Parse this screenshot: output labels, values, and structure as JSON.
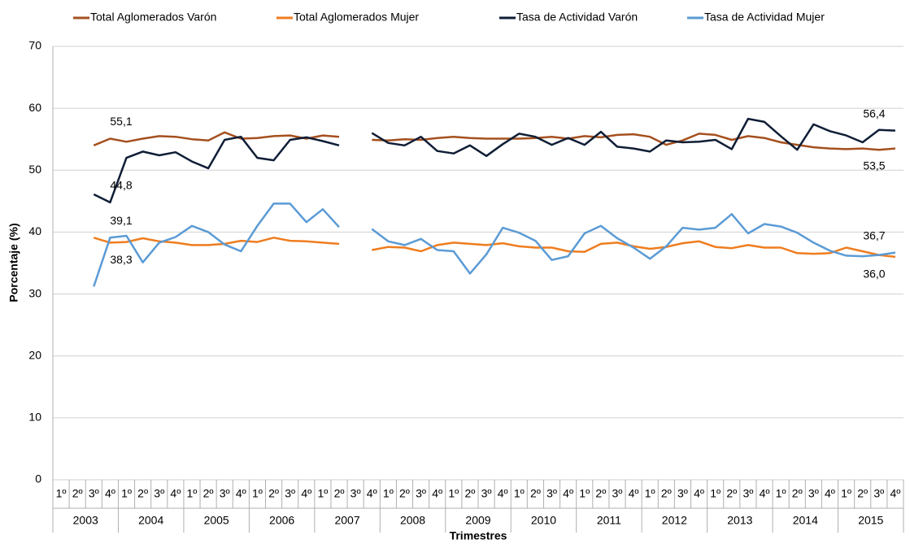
{
  "chart_data": {
    "type": "line",
    "ylabel": "Porcentaje (%)",
    "xlabel": "Trimestres",
    "categories": [
      "1º",
      "2º",
      "3º",
      "4º",
      "1º",
      "2º",
      "3º",
      "4º",
      "1º",
      "2º",
      "3º",
      "4º",
      "1º",
      "2º",
      "3º",
      "4º",
      "1º",
      "2º",
      "3º",
      "4º",
      "1º",
      "2º",
      "3º",
      "4º",
      "1º",
      "2º",
      "3º",
      "4º",
      "1º",
      "2º",
      "3º",
      "4º",
      "1º",
      "2º",
      "3º",
      "4º",
      "1º",
      "2º",
      "3º",
      "4º",
      "1º",
      "2º",
      "3º",
      "4º",
      "1º",
      "2º",
      "3º",
      "4º",
      "1º",
      "2º",
      "3º",
      "4º"
    ],
    "years": [
      2003,
      2004,
      2005,
      2006,
      2007,
      2008,
      2009,
      2010,
      2011,
      2012,
      2013,
      2014,
      2015
    ],
    "ylim": [
      0,
      70
    ],
    "yticks": [
      0,
      10,
      20,
      30,
      40,
      50,
      60,
      70
    ],
    "grid": true,
    "legend": "top",
    "series": [
      {
        "name": "Total Aglomerados Varón",
        "color": "#a5501f",
        "values": [
          null,
          null,
          54.0,
          55.1,
          54.6,
          55.1,
          55.5,
          55.4,
          55.0,
          54.8,
          56.1,
          55.1,
          55.2,
          55.5,
          55.6,
          55.1,
          55.6,
          55.4,
          null,
          54.9,
          54.8,
          55.0,
          54.9,
          55.2,
          55.4,
          55.2,
          55.1,
          55.1,
          55.1,
          55.2,
          55.4,
          55.1,
          55.5,
          55.3,
          55.7,
          55.8,
          55.4,
          54.1,
          54.8,
          55.9,
          55.7,
          54.9,
          55.5,
          55.2,
          54.5,
          54.1,
          53.7,
          53.5,
          53.4,
          53.5,
          53.3,
          53.5
        ],
        "value_labels": [
          null,
          null,
          null,
          "55,1",
          null,
          null,
          null,
          null,
          null,
          null,
          null,
          null,
          null,
          null,
          null,
          null,
          null,
          null,
          null,
          null,
          null,
          null,
          null,
          null,
          null,
          null,
          null,
          null,
          null,
          null,
          null,
          null,
          null,
          null,
          null,
          null,
          null,
          null,
          null,
          null,
          null,
          null,
          null,
          null,
          null,
          null,
          null,
          null,
          null,
          null,
          null,
          "53,5"
        ]
      },
      {
        "name": "Total Aglomerados Mujer",
        "color": "#ee7d1f",
        "values": [
          null,
          null,
          39.1,
          38.3,
          38.4,
          39.0,
          38.5,
          38.3,
          37.9,
          37.9,
          38.1,
          38.6,
          38.4,
          39.1,
          38.6,
          38.5,
          38.3,
          38.1,
          null,
          37.1,
          37.6,
          37.5,
          36.9,
          37.9,
          38.3,
          38.1,
          37.9,
          38.2,
          37.7,
          37.5,
          37.5,
          36.9,
          36.8,
          38.1,
          38.3,
          37.7,
          37.3,
          37.6,
          38.2,
          38.5,
          37.6,
          37.4,
          37.9,
          37.5,
          37.5,
          36.6,
          36.5,
          36.6,
          37.5,
          36.9,
          36.3,
          36.0
        ],
        "value_labels": [
          null,
          null,
          null,
          "38,3",
          null,
          null,
          null,
          null,
          null,
          null,
          null,
          null,
          null,
          null,
          null,
          null,
          null,
          null,
          null,
          null,
          null,
          null,
          null,
          null,
          null,
          null,
          null,
          null,
          null,
          null,
          null,
          null,
          null,
          null,
          null,
          null,
          null,
          null,
          null,
          null,
          null,
          null,
          null,
          null,
          null,
          null,
          null,
          null,
          null,
          null,
          null,
          "36,0"
        ]
      },
      {
        "name": "Tasa de Actividad Varón",
        "color": "#0f1e36",
        "values": [
          null,
          null,
          46.1,
          44.8,
          52.0,
          53.0,
          52.4,
          52.9,
          51.4,
          50.3,
          54.9,
          55.4,
          52.0,
          51.6,
          54.9,
          55.3,
          54.7,
          54.0,
          null,
          56.0,
          54.4,
          54.0,
          55.4,
          53.1,
          52.7,
          54.0,
          52.3,
          54.2,
          55.9,
          55.4,
          54.1,
          55.2,
          54.1,
          56.2,
          53.8,
          53.5,
          53.0,
          54.8,
          54.5,
          54.6,
          54.9,
          53.4,
          58.3,
          57.8,
          55.5,
          53.3,
          57.4,
          56.3,
          55.6,
          54.5,
          56.5,
          56.4
        ],
        "value_labels": [
          null,
          null,
          null,
          "44,8",
          null,
          null,
          null,
          null,
          null,
          null,
          null,
          null,
          null,
          null,
          null,
          null,
          null,
          null,
          null,
          null,
          null,
          null,
          null,
          null,
          null,
          null,
          null,
          null,
          null,
          null,
          null,
          null,
          null,
          null,
          null,
          null,
          null,
          null,
          null,
          null,
          null,
          null,
          null,
          null,
          null,
          null,
          null,
          null,
          null,
          null,
          null,
          "56,4"
        ]
      },
      {
        "name": "Tasa de Actividad Mujer",
        "color": "#5b9bd5",
        "values": [
          null,
          null,
          31.2,
          39.1,
          39.4,
          35.1,
          38.3,
          39.2,
          41.0,
          40.0,
          38.0,
          36.9,
          41.0,
          44.6,
          44.6,
          41.6,
          43.7,
          40.8,
          null,
          40.5,
          38.5,
          37.9,
          38.9,
          37.1,
          36.9,
          33.3,
          36.4,
          40.7,
          39.9,
          38.6,
          35.5,
          36.1,
          39.8,
          41.0,
          39.0,
          37.5,
          35.7,
          37.7,
          40.7,
          40.4,
          40.7,
          42.9,
          39.8,
          41.3,
          40.9,
          39.9,
          38.3,
          37.0,
          36.2,
          36.1,
          36.3,
          36.7
        ],
        "value_labels": [
          null,
          null,
          null,
          "39,1",
          null,
          null,
          null,
          null,
          null,
          null,
          null,
          null,
          null,
          null,
          null,
          null,
          null,
          null,
          null,
          null,
          null,
          null,
          null,
          null,
          null,
          null,
          null,
          null,
          null,
          null,
          null,
          null,
          null,
          null,
          null,
          null,
          null,
          null,
          null,
          null,
          null,
          null,
          null,
          null,
          null,
          null,
          null,
          null,
          null,
          null,
          null,
          "36,7"
        ]
      }
    ]
  }
}
